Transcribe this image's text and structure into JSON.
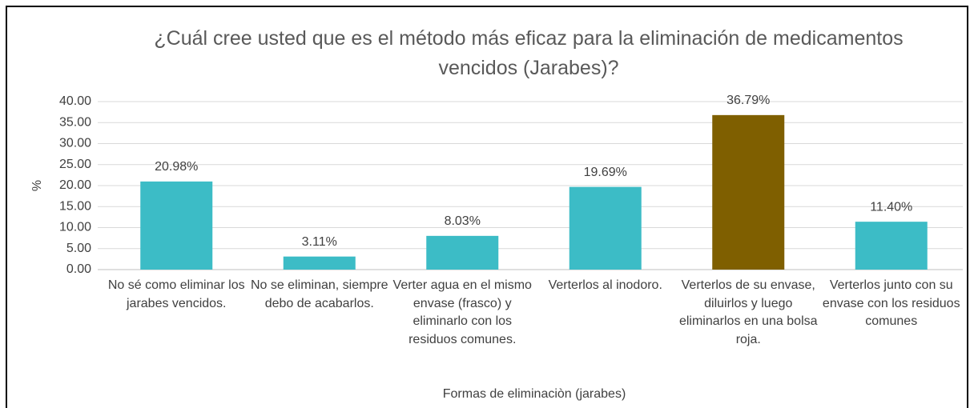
{
  "chart_data": {
    "type": "bar",
    "title": "¿Cuál cree usted que es el método más eficaz para la eliminación de medicamentos vencidos (Jarabes)?",
    "x_label": "Formas de eliminaciòn (jarabes)",
    "y_label": "%",
    "categories": [
      "No sé como eliminar los jarabes vencidos.",
      "No se eliminan, siempre debo de acabarlos.",
      "Verter agua en el mismo envase (frasco) y eliminarlo con los residuos comunes.",
      "Verterlos al inodoro.",
      "Verterlos de su envase, diluirlos y luego eliminarlos en una bolsa roja.",
      "Verterlos junto con su envase con los residuos comunes"
    ],
    "values": [
      20.98,
      3.11,
      8.03,
      19.69,
      36.79,
      11.4
    ],
    "value_labels": [
      "20.98%",
      "3.11%",
      "8.03%",
      "19.69%",
      "36.79%",
      "11.40%"
    ],
    "colors": [
      "#3cbcc6",
      "#3cbcc6",
      "#3cbcc6",
      "#3cbcc6",
      "#7f5f00",
      "#3cbcc6"
    ],
    "ylim": [
      0,
      40
    ],
    "yticks": [
      {
        "value": 0,
        "label": "0.00"
      },
      {
        "value": 5,
        "label": "5.00"
      },
      {
        "value": 10,
        "label": "10.00"
      },
      {
        "value": 15,
        "label": "15.00"
      },
      {
        "value": 20,
        "label": "20.00"
      },
      {
        "value": 25,
        "label": "25.00"
      },
      {
        "value": 30,
        "label": "30.00"
      },
      {
        "value": 35,
        "label": "35.00"
      },
      {
        "value": 40,
        "label": "40.00"
      }
    ],
    "grid": true
  }
}
